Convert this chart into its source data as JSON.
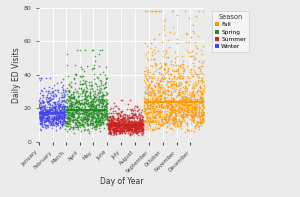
{
  "title": "",
  "xlabel": "Day of Year",
  "ylabel": "Daily ED Visits",
  "ylim": [
    0,
    80
  ],
  "yticks": [
    0,
    20,
    40,
    60,
    80
  ],
  "seasons": {
    "Winter": {
      "day_start": 1,
      "day_end": 59,
      "color": "#4444EE",
      "median": 17
    },
    "Spring": {
      "day_start": 60,
      "day_end": 152,
      "color": "#228B22",
      "median": 19
    },
    "Summer": {
      "day_start": 153,
      "day_end": 231,
      "color": "#CC2222",
      "median": 10
    },
    "Fall": {
      "day_start": 232,
      "day_end": 365,
      "color": "#FF9900",
      "median": 24
    }
  },
  "month_starts": [
    1,
    32,
    60,
    91,
    121,
    152,
    182,
    213,
    244,
    274,
    305,
    335
  ],
  "month_labels": [
    "January",
    "February",
    "March",
    "April",
    "May",
    "June",
    "July",
    "August",
    "September",
    "October",
    "November",
    "December"
  ],
  "legend_order": [
    "Fall",
    "Spring",
    "Summer",
    "Winter"
  ],
  "legend_colors": {
    "Fall": "#FF9900",
    "Spring": "#228B22",
    "Summer": "#CC2222",
    "Winter": "#4444EE"
  },
  "background_color": "#EBEBEB",
  "grid_color": "#FFFFFF",
  "seed": 42,
  "n_years": 10,
  "point_size": 1.5
}
